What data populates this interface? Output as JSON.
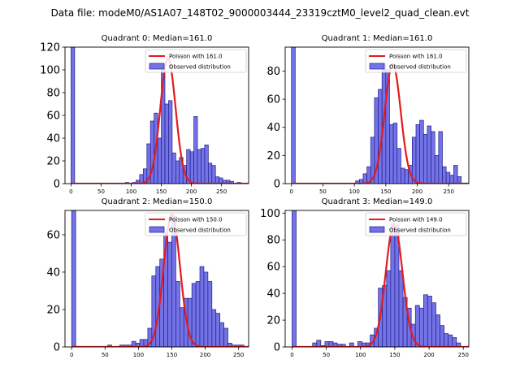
{
  "suptitle": "Data file: modeM0/AS1A07_148T02_9000003444_23319cztM0_level2_quad_clean.evt",
  "colors": {
    "bar_fill": "#7373e6",
    "bar_edge": "#1f1f8f",
    "poisson_line": "#e41a1c",
    "axis": "#000000"
  },
  "chart_data": [
    {
      "type": "bar",
      "title": "Quadrant 0: Median=161.0",
      "bin_width": 6,
      "xlim": [
        -10,
        295
      ],
      "ylim": [
        0,
        120
      ],
      "xticks": [
        0,
        50,
        100,
        150,
        200,
        250
      ],
      "yticks": [
        0,
        20,
        40,
        60,
        80,
        100,
        120
      ],
      "bins": [
        [
          0,
          120
        ],
        [
          90,
          1
        ],
        [
          102,
          1
        ],
        [
          108,
          3
        ],
        [
          114,
          8
        ],
        [
          120,
          13
        ],
        [
          126,
          35
        ],
        [
          132,
          55
        ],
        [
          138,
          62
        ],
        [
          144,
          40
        ],
        [
          150,
          101
        ],
        [
          156,
          70
        ],
        [
          162,
          73
        ],
        [
          168,
          27
        ],
        [
          174,
          20
        ],
        [
          180,
          23
        ],
        [
          186,
          16
        ],
        [
          192,
          30
        ],
        [
          198,
          28
        ],
        [
          204,
          59
        ],
        [
          210,
          30
        ],
        [
          216,
          31
        ],
        [
          222,
          34
        ],
        [
          228,
          18
        ],
        [
          234,
          16
        ],
        [
          240,
          6
        ],
        [
          246,
          5
        ],
        [
          252,
          3
        ],
        [
          258,
          3
        ],
        [
          264,
          2
        ],
        [
          276,
          1
        ]
      ],
      "poisson_curve": {
        "mean": 161.0,
        "peak": 110
      },
      "legend": [
        "Poisson with 161.0",
        "Observed distribution"
      ]
    },
    {
      "type": "bar",
      "title": "Quadrant 1: Median=161.0",
      "bin_width": 6,
      "xlim": [
        -10,
        282
      ],
      "ylim": [
        0,
        97
      ],
      "xticks": [
        0,
        50,
        100,
        150,
        200,
        250
      ],
      "yticks": [
        0,
        20,
        40,
        60,
        80
      ],
      "bins": [
        [
          0,
          97
        ],
        [
          102,
          2
        ],
        [
          108,
          3
        ],
        [
          114,
          7
        ],
        [
          120,
          12
        ],
        [
          126,
          33
        ],
        [
          132,
          61
        ],
        [
          138,
          67
        ],
        [
          144,
          85
        ],
        [
          150,
          81
        ],
        [
          156,
          42
        ],
        [
          162,
          43
        ],
        [
          168,
          25
        ],
        [
          174,
          11
        ],
        [
          180,
          10
        ],
        [
          186,
          13
        ],
        [
          192,
          33
        ],
        [
          198,
          42
        ],
        [
          204,
          45
        ],
        [
          210,
          35
        ],
        [
          216,
          41
        ],
        [
          222,
          37
        ],
        [
          228,
          20
        ],
        [
          234,
          37
        ],
        [
          240,
          12
        ],
        [
          246,
          8
        ],
        [
          252,
          6
        ],
        [
          258,
          13
        ],
        [
          264,
          5
        ]
      ],
      "poisson_curve": {
        "mean": 161.0,
        "peak": 85
      },
      "legend": [
        "Poisson with 161.0",
        "Observed distribution"
      ]
    },
    {
      "type": "bar",
      "title": "Quadrant 2: Median=150.0",
      "bin_width": 6,
      "xlim": [
        -10,
        265
      ],
      "ylim": [
        0,
        73
      ],
      "xticks": [
        0,
        50,
        100,
        150,
        200,
        250
      ],
      "yticks": [
        0,
        20,
        40,
        60
      ],
      "bins": [
        [
          0,
          73
        ],
        [
          54,
          1
        ],
        [
          72,
          1
        ],
        [
          78,
          1
        ],
        [
          84,
          1
        ],
        [
          90,
          3
        ],
        [
          96,
          2
        ],
        [
          102,
          4
        ],
        [
          108,
          4
        ],
        [
          114,
          10
        ],
        [
          120,
          38
        ],
        [
          126,
          43
        ],
        [
          132,
          47
        ],
        [
          138,
          61
        ],
        [
          144,
          56
        ],
        [
          150,
          70
        ],
        [
          156,
          35
        ],
        [
          162,
          21
        ],
        [
          168,
          26
        ],
        [
          174,
          26
        ],
        [
          180,
          34
        ],
        [
          186,
          35
        ],
        [
          192,
          43
        ],
        [
          198,
          40
        ],
        [
          204,
          35
        ],
        [
          210,
          20
        ],
        [
          216,
          18
        ],
        [
          222,
          13
        ],
        [
          228,
          10
        ],
        [
          234,
          2
        ],
        [
          240,
          1
        ],
        [
          246,
          1
        ],
        [
          252,
          1
        ]
      ],
      "poisson_curve": {
        "mean": 150.0,
        "peak": 71
      },
      "legend": [
        "Poisson with 150.0",
        "Observed distribution"
      ]
    },
    {
      "type": "bar",
      "title": "Quadrant 3: Median=149.0",
      "bin_width": 6,
      "xlim": [
        -10,
        258
      ],
      "ylim": [
        0,
        102
      ],
      "xticks": [
        0,
        50,
        100,
        150,
        200,
        250
      ],
      "yticks": [
        0,
        20,
        40,
        60,
        80,
        100
      ],
      "bins": [
        [
          0,
          102
        ],
        [
          30,
          3
        ],
        [
          36,
          5
        ],
        [
          42,
          1
        ],
        [
          48,
          4
        ],
        [
          54,
          4
        ],
        [
          60,
          3
        ],
        [
          66,
          2
        ],
        [
          72,
          2
        ],
        [
          84,
          3
        ],
        [
          96,
          4
        ],
        [
          102,
          3
        ],
        [
          108,
          3
        ],
        [
          114,
          9
        ],
        [
          120,
          14
        ],
        [
          126,
          44
        ],
        [
          132,
          46
        ],
        [
          138,
          57
        ],
        [
          144,
          92
        ],
        [
          150,
          91
        ],
        [
          156,
          57
        ],
        [
          162,
          37
        ],
        [
          168,
          29
        ],
        [
          174,
          17
        ],
        [
          180,
          31
        ],
        [
          186,
          29
        ],
        [
          192,
          39
        ],
        [
          198,
          38
        ],
        [
          204,
          33
        ],
        [
          210,
          24
        ],
        [
          216,
          16
        ],
        [
          222,
          10
        ],
        [
          228,
          9
        ],
        [
          234,
          7
        ],
        [
          240,
          3
        ]
      ],
      "poisson_curve": {
        "mean": 149.0,
        "peak": 92
      },
      "legend": [
        "Poisson with 149.0",
        "Observed distribution"
      ]
    }
  ]
}
